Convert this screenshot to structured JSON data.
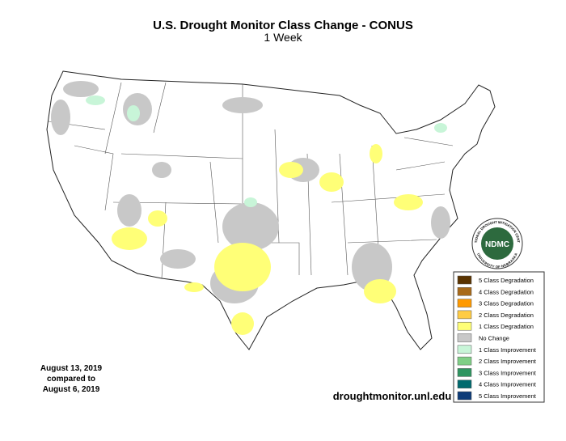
{
  "header": {
    "title": "U.S. Drought Monitor Class Change - CONUS",
    "subtitle": "1 Week"
  },
  "legend": [
    {
      "label": "5 Class Degradation",
      "color": "#5a3300"
    },
    {
      "label": "4 Class Degradation",
      "color": "#a86a1a"
    },
    {
      "label": "3 Class Degradation",
      "color": "#ff9a00"
    },
    {
      "label": "2 Class Degradation",
      "color": "#ffcc44"
    },
    {
      "label": "1 Class Degradation",
      "color": "#ffff77"
    },
    {
      "label": "No Change",
      "color": "#c8c8c8"
    },
    {
      "label": "1 Class Improvement",
      "color": "#c8f5d8"
    },
    {
      "label": "2 Class Improvement",
      "color": "#7fcf86"
    },
    {
      "label": "3 Class Improvement",
      "color": "#2f9560"
    },
    {
      "label": "4 Class Improvement",
      "color": "#006a6e"
    },
    {
      "label": "5 Class Improvement",
      "color": "#0d3b78"
    }
  ],
  "dates": [
    "August 13, 2019",
    "compared to",
    "August 6, 2019"
  ],
  "source": "droughtmonitor.unl.edu",
  "logo": {
    "name": "NDMC",
    "top": "NATIONAL DROUGHT MITIGATION CENTER",
    "bottom": "UNIVERSITY OF NEBRASKA"
  }
}
